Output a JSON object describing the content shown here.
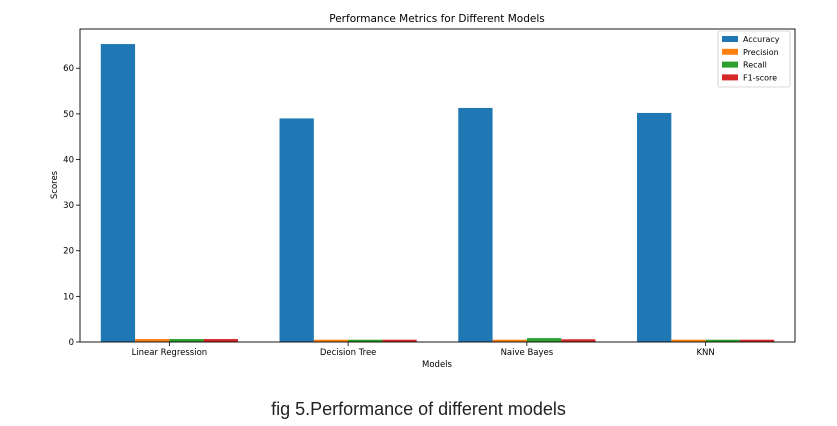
{
  "caption": "fig 5.Performance of different models",
  "chart_data": {
    "type": "bar",
    "title": "Performance Metrics for Different Models",
    "xlabel": "Models",
    "ylabel": "Scores",
    "categories": [
      "Linear Regression",
      "Decision Tree",
      "Naive Bayes",
      "KNN"
    ],
    "series": [
      {
        "name": "Accuracy",
        "color": "#1f77b4",
        "values": [
          65.3,
          49.0,
          51.3,
          50.2
        ]
      },
      {
        "name": "Precision",
        "color": "#ff7f0e",
        "values": [
          0.65,
          0.5,
          0.5,
          0.5
        ]
      },
      {
        "name": "Recall",
        "color": "#2ca02c",
        "values": [
          0.65,
          0.5,
          0.85,
          0.5
        ]
      },
      {
        "name": "F1-score",
        "color": "#d62728",
        "values": [
          0.65,
          0.5,
          0.6,
          0.5
        ]
      }
    ],
    "ylim": [
      0,
      68.6
    ],
    "yticks": [
      0,
      10,
      20,
      30,
      40,
      50,
      60
    ],
    "grid": false,
    "legend": "top-right"
  }
}
